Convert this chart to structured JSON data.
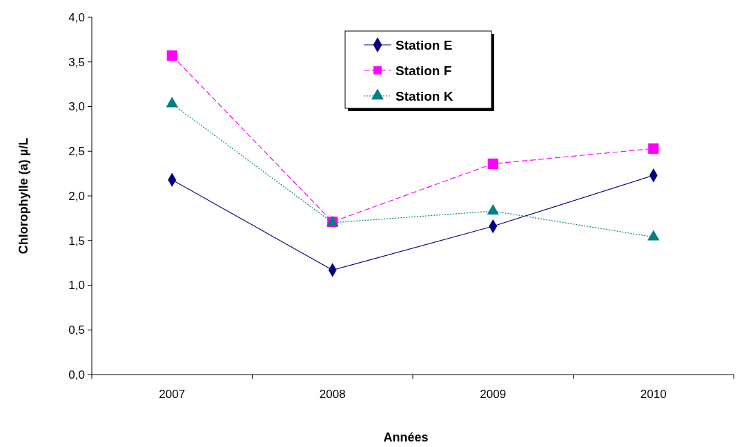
{
  "chart_data": {
    "type": "line",
    "xlabel": "Années",
    "ylabel": "Chlorophylle (a) µ/L",
    "categories": [
      "2007",
      "2008",
      "2009",
      "2010"
    ],
    "series": [
      {
        "name": "Station E",
        "color": "#000080",
        "marker": "diamond",
        "line_style": "solid",
        "values": [
          2.18,
          1.17,
          1.66,
          2.23
        ]
      },
      {
        "name": "Station F",
        "color": "#ff00ff",
        "marker": "square",
        "line_style": "dashed",
        "values": [
          3.57,
          1.71,
          2.36,
          2.53
        ]
      },
      {
        "name": "Station K",
        "color": "#008080",
        "marker": "triangle",
        "line_style": "dotted",
        "values": [
          3.03,
          1.7,
          1.83,
          1.54
        ]
      }
    ],
    "ylim": [
      0,
      4
    ],
    "yticks": [
      {
        "value": 0,
        "label": "0,0"
      },
      {
        "value": 0.5,
        "label": "0,5"
      },
      {
        "value": 1,
        "label": "1,0"
      },
      {
        "value": 1.5,
        "label": "1,5"
      },
      {
        "value": 2,
        "label": "2,0"
      },
      {
        "value": 2.5,
        "label": "2,5"
      },
      {
        "value": 3,
        "label": "3,0"
      },
      {
        "value": 3.5,
        "label": "3,5"
      },
      {
        "value": 4,
        "label": "4,0"
      }
    ],
    "grid": false,
    "legend": "top"
  }
}
